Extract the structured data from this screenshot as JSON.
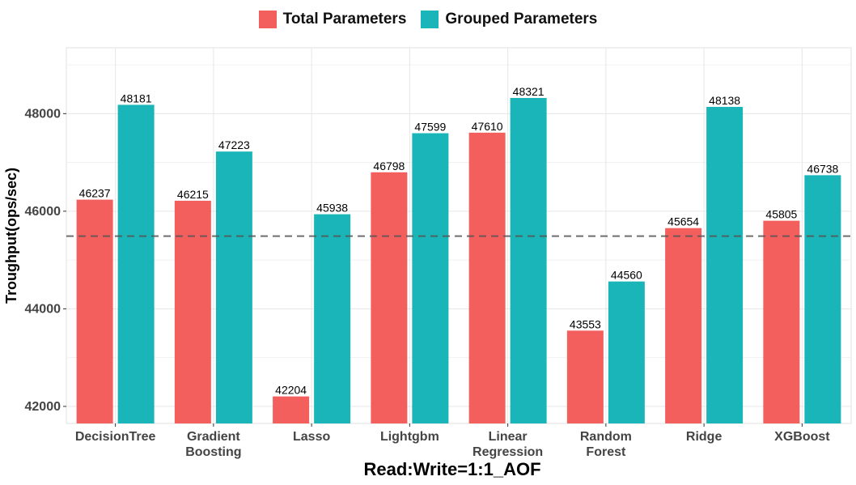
{
  "legend": [
    {
      "label": "Total Parameters",
      "color": "#F25F5C"
    },
    {
      "label": "Grouped Parameters",
      "color": "#1AB5B8"
    }
  ],
  "chart_data": {
    "type": "bar",
    "categories": [
      [
        "DecisionTree"
      ],
      [
        "Gradient",
        "Boosting"
      ],
      [
        "Lasso"
      ],
      [
        "Lightgbm"
      ],
      [
        "Linear",
        "Regression"
      ],
      [
        "Random",
        "Forest"
      ],
      [
        "Ridge"
      ],
      [
        "XGBoost"
      ]
    ],
    "series": [
      {
        "name": "Total Parameters",
        "color": "#F25F5C",
        "values": [
          46237,
          46215,
          42204,
          46798,
          47610,
          43553,
          45654,
          45805
        ]
      },
      {
        "name": "Grouped Parameters",
        "color": "#1AB5B8",
        "values": [
          48181,
          47223,
          45938,
          47599,
          48321,
          44560,
          48138,
          46738
        ]
      }
    ],
    "xlabel": "Read:Write=1:1_AOF",
    "ylabel": "Troughput(ops/sec)",
    "ylim": [
      41650,
      49350
    ],
    "yticks": [
      42000,
      44000,
      46000,
      48000
    ],
    "reference_line": 45490,
    "grid": true,
    "legend_position": "top"
  }
}
